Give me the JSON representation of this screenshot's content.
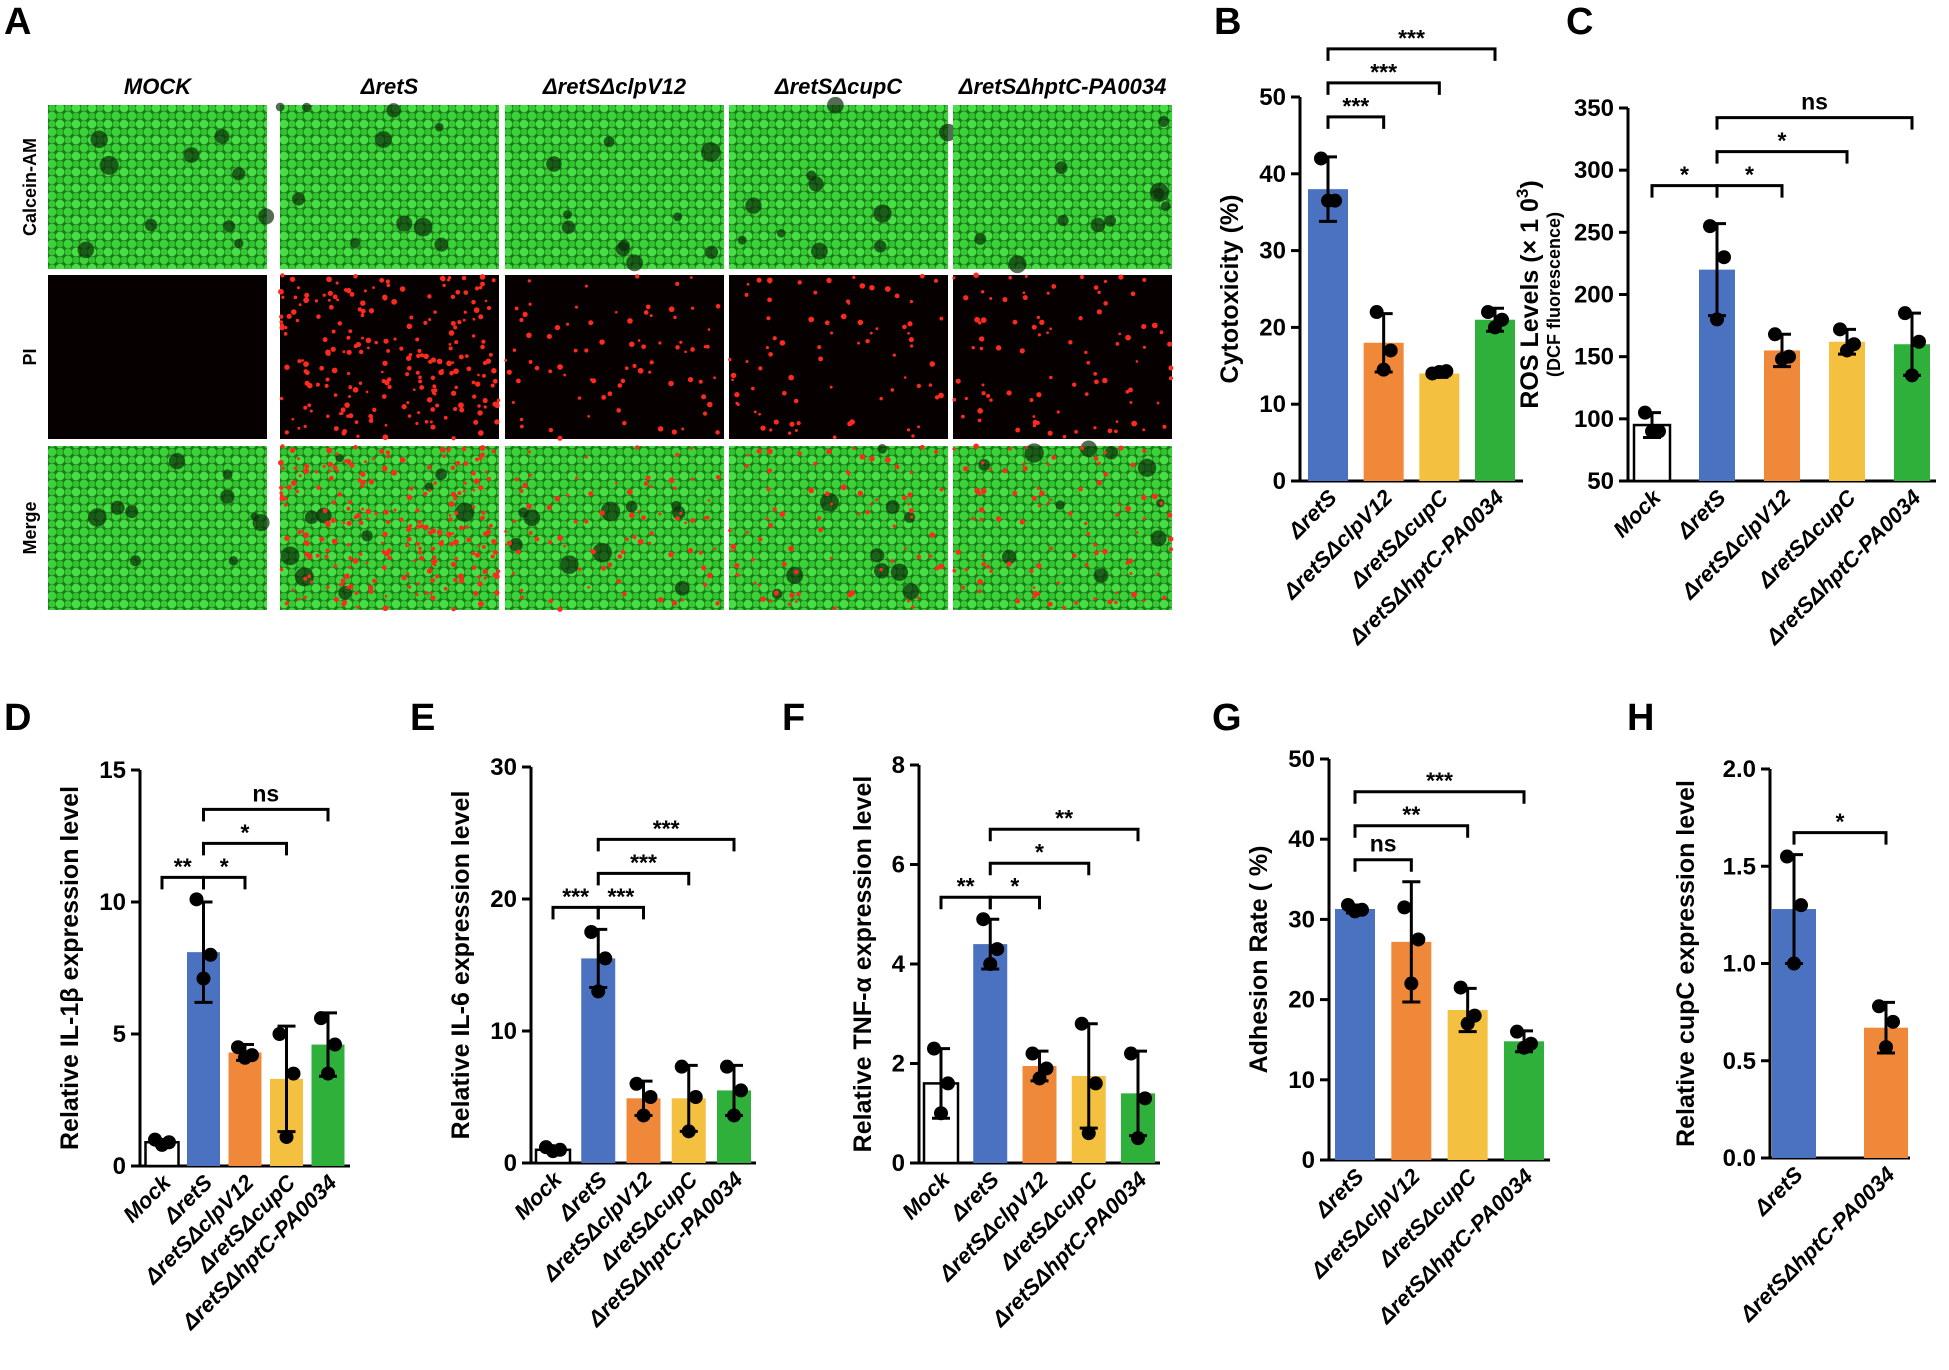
{
  "colors": {
    "mock": "#ffffff",
    "retS": "#4a72c0",
    "clpV12": "#f0883a",
    "cupC": "#f4c040",
    "hptC": "#2fb03a",
    "green_fluor": "#3bd23a",
    "red_fluor": "#ff2a1e"
  },
  "panel_a": {
    "label": "A",
    "columns": [
      "MOCK",
      "ΔretS",
      "ΔretSΔclpV12",
      "ΔretSΔcupC",
      "ΔretSΔhptC-PA0034"
    ],
    "rows": [
      "Calcein-AM",
      "PI",
      "Merge"
    ],
    "pi_density": [
      0,
      0.9,
      0.3,
      0.3,
      0.35
    ]
  },
  "chart_data": [
    {
      "id": "B",
      "label": "B",
      "type": "bar",
      "ylabel": "Cytotoxicity (%)",
      "ylabel_sub": "",
      "ylim": [
        0,
        50
      ],
      "yticks": [
        "0",
        "10",
        "20",
        "30",
        "40",
        "50"
      ],
      "categories": [
        "ΔretS",
        "ΔretSΔclpV12",
        "ΔretSΔcupC",
        "ΔretSΔhptC-PA0034"
      ],
      "color_keys": [
        "retS",
        "clpV12",
        "cupC",
        "hptC"
      ],
      "values": [
        38,
        18,
        14,
        21
      ],
      "errors": [
        4.2,
        3.8,
        0.5,
        1.5
      ],
      "points": [
        [
          42,
          36.5,
          36.5
        ],
        [
          22,
          17,
          14.5
        ],
        [
          14,
          14.3,
          14.2
        ],
        [
          22,
          21,
          20
        ]
      ],
      "significance": [
        {
          "from": 0,
          "to": 1,
          "text": "***",
          "level": 0
        },
        {
          "from": 0,
          "to": 2,
          "text": "***",
          "level": 1
        },
        {
          "from": 0,
          "to": 3,
          "text": "***",
          "level": 2
        }
      ]
    },
    {
      "id": "C",
      "label": "C",
      "type": "bar",
      "ylabel": "ROS Levels (× 1 0",
      "ylabel_sup": "3",
      "ylabel_end": ")",
      "ylabel_sub": "(DCF fluorescence)",
      "ylim": [
        50,
        350
      ],
      "yticks": [
        "50",
        "100",
        "150",
        "200",
        "250",
        "300",
        "350"
      ],
      "categories": [
        "Mock",
        "ΔretS",
        "ΔretSΔclpV12",
        "ΔretSΔcupC",
        "ΔretSΔhptC-PA0034"
      ],
      "color_keys": [
        "mock",
        "retS",
        "clpV12",
        "cupC",
        "hptC"
      ],
      "values": [
        95,
        220,
        155,
        162,
        160
      ],
      "errors": [
        10,
        37,
        13,
        10,
        25
      ],
      "points": [
        [
          105,
          90,
          90
        ],
        [
          255,
          230,
          180
        ],
        [
          168,
          150,
          148
        ],
        [
          172,
          160,
          155
        ],
        [
          185,
          162,
          135
        ]
      ],
      "significance": [
        {
          "from": 0,
          "to": 1,
          "text": "*",
          "level": 0
        },
        {
          "from": 1,
          "to": 2,
          "text": "*",
          "level": 0
        },
        {
          "from": 1,
          "to": 3,
          "text": "*",
          "level": 1
        },
        {
          "from": 1,
          "to": 4,
          "text": "ns",
          "level": 2
        }
      ]
    },
    {
      "id": "D",
      "label": "D",
      "type": "bar",
      "ylabel": "Relative IL-1β expression level",
      "ylabel_sub": "",
      "ylim": [
        0,
        15
      ],
      "yticks": [
        "0",
        "5",
        "10",
        "15"
      ],
      "categories": [
        "Mock",
        "ΔretS",
        "ΔretSΔclpV12",
        "ΔretSΔcupC",
        "ΔretSΔhptC-PA0034"
      ],
      "color_keys": [
        "mock",
        "retS",
        "clpV12",
        "cupC",
        "hptC"
      ],
      "values": [
        0.9,
        8.1,
        4.3,
        3.3,
        4.6
      ],
      "errors": [
        0.1,
        1.9,
        0.3,
        2.0,
        1.2
      ],
      "points": [
        [
          1.0,
          0.9,
          0.8
        ],
        [
          10.1,
          8.0,
          7.1
        ],
        [
          4.5,
          4.2,
          4.1
        ],
        [
          5.0,
          3.5,
          1.1
        ],
        [
          5.6,
          4.6,
          3.5
        ]
      ],
      "significance": [
        {
          "from": 0,
          "to": 1,
          "text": "**",
          "level": 0
        },
        {
          "from": 1,
          "to": 2,
          "text": "*",
          "level": 0
        },
        {
          "from": 1,
          "to": 3,
          "text": "*",
          "level": 1
        },
        {
          "from": 1,
          "to": 4,
          "text": "ns",
          "level": 2
        }
      ]
    },
    {
      "id": "E",
      "label": "E",
      "type": "bar",
      "ylabel": "Relative IL-6 expression level",
      "ylabel_sub": "",
      "ylim": [
        0,
        30
      ],
      "yticks": [
        "0",
        "10",
        "20",
        "30"
      ],
      "categories": [
        "Mock",
        "ΔretS",
        "ΔretSΔclpV12",
        "ΔretSΔcupC",
        "ΔretSΔhptC-PA0034"
      ],
      "color_keys": [
        "mock",
        "retS",
        "clpV12",
        "cupC",
        "hptC"
      ],
      "values": [
        1.0,
        15.5,
        4.9,
        4.9,
        5.5
      ],
      "errors": [
        0.2,
        2.2,
        1.3,
        2.5,
        1.9
      ],
      "points": [
        [
          1.2,
          1.0,
          0.9
        ],
        [
          17.5,
          15.5,
          13.0
        ],
        [
          6.0,
          5.0,
          3.6
        ],
        [
          7.3,
          5.0,
          2.4
        ],
        [
          7.3,
          5.5,
          3.6
        ]
      ],
      "significance": [
        {
          "from": 0,
          "to": 1,
          "text": "***",
          "level": 0
        },
        {
          "from": 1,
          "to": 2,
          "text": "***",
          "level": 0
        },
        {
          "from": 1,
          "to": 3,
          "text": "***",
          "level": 1
        },
        {
          "from": 1,
          "to": 4,
          "text": "***",
          "level": 2
        }
      ]
    },
    {
      "id": "F",
      "label": "F",
      "type": "bar",
      "ylabel": "Relative TNF-α expression level",
      "ylabel_sub": "",
      "ylim": [
        0,
        8
      ],
      "yticks": [
        "0",
        "2",
        "4",
        "6",
        "8"
      ],
      "categories": [
        "Mock",
        "ΔretS",
        "ΔretSΔclpV12",
        "ΔretSΔcupC",
        "ΔretSΔhptC-PA0034"
      ],
      "color_keys": [
        "mock",
        "retS",
        "clpV12",
        "cupC",
        "hptC"
      ],
      "values": [
        1.6,
        4.4,
        1.95,
        1.75,
        1.4
      ],
      "errors": [
        0.7,
        0.5,
        0.3,
        1.05,
        0.85
      ],
      "points": [
        [
          2.3,
          1.6,
          1.0
        ],
        [
          4.9,
          4.3,
          4.0
        ],
        [
          2.2,
          1.9,
          1.7
        ],
        [
          2.8,
          1.6,
          0.6
        ],
        [
          2.2,
          1.3,
          0.5
        ]
      ],
      "significance": [
        {
          "from": 0,
          "to": 1,
          "text": "**",
          "level": 0
        },
        {
          "from": 1,
          "to": 2,
          "text": "*",
          "level": 0
        },
        {
          "from": 1,
          "to": 3,
          "text": "*",
          "level": 1
        },
        {
          "from": 1,
          "to": 4,
          "text": "**",
          "level": 2
        }
      ]
    },
    {
      "id": "G",
      "label": "G",
      "type": "bar",
      "ylabel": "Adhesion Rate ( %)",
      "ylabel_sub": "",
      "ylim": [
        0,
        50
      ],
      "yticks": [
        "0",
        "10",
        "20",
        "30",
        "40",
        "50"
      ],
      "categories": [
        "ΔretS",
        "ΔretSΔclpV12",
        "ΔretSΔcupC",
        "ΔretSΔhptC-PA0034"
      ],
      "color_keys": [
        "retS",
        "clpV12",
        "cupC",
        "hptC"
      ],
      "values": [
        31.3,
        27.2,
        18.7,
        14.8
      ],
      "errors": [
        0.5,
        7.5,
        2.7,
        1.3
      ],
      "points": [
        [
          31.8,
          31.2,
          31.0
        ],
        [
          31.5,
          27.5,
          22.0
        ],
        [
          21.5,
          18.0,
          17.0
        ],
        [
          16.0,
          14.5,
          14.0
        ]
      ],
      "significance": [
        {
          "from": 0,
          "to": 1,
          "text": "ns",
          "level": 0
        },
        {
          "from": 0,
          "to": 2,
          "text": "**",
          "level": 1
        },
        {
          "from": 0,
          "to": 3,
          "text": "***",
          "level": 2
        }
      ]
    },
    {
      "id": "H",
      "label": "H",
      "type": "bar",
      "ylabel": "Relative cupC  expression level",
      "ylabel_sub": "",
      "ylim": [
        0,
        2.0
      ],
      "yticks": [
        "0.0",
        "0.5",
        "1.0",
        "1.5",
        "2.0"
      ],
      "categories": [
        "ΔretS",
        "ΔretSΔhptC-PA0034"
      ],
      "color_keys": [
        "retS",
        "clpV12"
      ],
      "values": [
        1.28,
        0.67
      ],
      "errors": [
        0.28,
        0.13
      ],
      "points": [
        [
          1.55,
          1.3,
          1.0
        ],
        [
          0.78,
          0.7,
          0.57
        ]
      ],
      "significance": [
        {
          "from": 0,
          "to": 1,
          "text": "*",
          "level": 0
        }
      ]
    }
  ]
}
